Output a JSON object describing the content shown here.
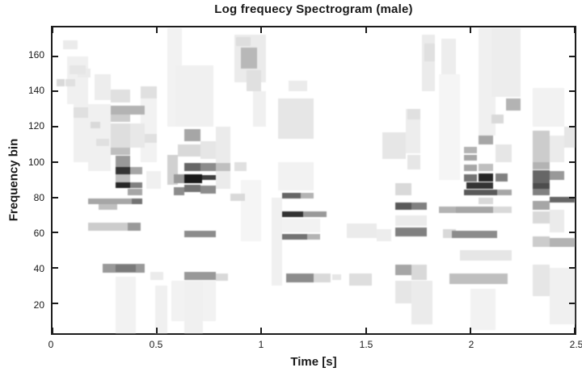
{
  "figure": {
    "title": "Log frequecy Spectrogram (male)",
    "xlabel": "Time [s]",
    "ylabel": "Frequency bin"
  },
  "chart_data": {
    "type": "heatmap",
    "title": "Log frequecy Spectrogram (male)",
    "xlabel": "Time [s]",
    "ylabel": "Frequency bin",
    "x_range": [
      0,
      2.5
    ],
    "y_range": [
      3,
      176
    ],
    "x_ticks": [
      0,
      0.5,
      1,
      1.5,
      2,
      2.5
    ],
    "x_tick_labels": [
      "0",
      "0.5",
      "1",
      "1.5",
      "2",
      "2.5"
    ],
    "y_ticks": [
      20,
      40,
      60,
      80,
      100,
      120,
      140,
      160
    ],
    "y_tick_labels": [
      "20",
      "40",
      "60",
      "80",
      "100",
      "120",
      "140",
      "160"
    ],
    "grid": false,
    "colormap": "inverted-gray white=low black=high",
    "cells_format": [
      "t_start_s",
      "t_end_s",
      "bin_low",
      "bin_high",
      "intensity_0to1"
    ],
    "cells": [
      [
        0.02,
        0.06,
        143,
        147,
        0.15
      ],
      [
        0.06,
        0.11,
        143,
        147,
        0.12
      ],
      [
        0.05,
        0.12,
        164,
        169,
        0.08
      ],
      [
        0.07,
        0.17,
        133,
        160,
        0.06
      ],
      [
        0.08,
        0.16,
        150,
        155,
        0.1
      ],
      [
        0.1,
        0.17,
        100,
        140,
        0.06
      ],
      [
        0.1,
        0.17,
        125,
        131,
        0.12
      ],
      [
        0.12,
        0.18,
        148,
        153,
        0.08
      ],
      [
        0.18,
        0.23,
        119,
        123,
        0.15
      ],
      [
        0.21,
        0.27,
        109,
        113,
        0.12
      ],
      [
        0.2,
        0.28,
        135,
        150,
        0.07
      ],
      [
        0.17,
        0.28,
        95,
        133,
        0.06
      ],
      [
        0.17,
        0.43,
        76,
        79.5,
        0.35
      ],
      [
        0.38,
        0.43,
        76,
        79.5,
        0.55
      ],
      [
        0.22,
        0.31,
        73,
        76,
        0.25
      ],
      [
        0.17,
        0.42,
        61,
        65.5,
        0.2
      ],
      [
        0.36,
        0.42,
        61,
        65.5,
        0.4
      ],
      [
        0.24,
        0.44,
        37.5,
        42.5,
        0.4
      ],
      [
        0.3,
        0.4,
        38,
        42,
        0.52
      ],
      [
        0.3,
        0.4,
        3,
        35,
        0.05
      ],
      [
        0.28,
        0.44,
        127,
        132,
        0.3
      ],
      [
        0.28,
        0.37,
        123,
        127,
        0.2
      ],
      [
        0.28,
        0.37,
        134,
        141,
        0.12
      ],
      [
        0.28,
        0.37,
        108,
        122,
        0.13
      ],
      [
        0.37,
        0.44,
        108,
        122,
        0.09
      ],
      [
        0.28,
        0.37,
        104,
        108,
        0.25
      ],
      [
        0.3,
        0.37,
        97,
        103.5,
        0.4
      ],
      [
        0.3,
        0.37,
        93,
        97,
        0.8
      ],
      [
        0.37,
        0.43,
        93,
        97,
        0.35
      ],
      [
        0.3,
        0.37,
        85.5,
        88.5,
        0.85
      ],
      [
        0.37,
        0.43,
        85.5,
        88.5,
        0.5
      ],
      [
        0.36,
        0.43,
        81,
        85,
        0.35
      ],
      [
        0.3,
        0.37,
        88.5,
        93,
        0.25
      ],
      [
        0.42,
        0.5,
        136,
        143,
        0.12
      ],
      [
        0.42,
        0.5,
        100,
        136,
        0.05
      ],
      [
        0.44,
        0.5,
        111,
        116,
        0.12
      ],
      [
        0.45,
        0.52,
        85,
        95,
        0.06
      ],
      [
        0.49,
        0.55,
        3,
        30,
        0.06
      ],
      [
        0.47,
        0.53,
        33,
        38,
        0.08
      ],
      [
        0.55,
        0.6,
        87,
        104,
        0.18
      ],
      [
        0.55,
        0.62,
        120,
        176,
        0.05
      ],
      [
        0.57,
        0.63,
        10,
        33,
        0.05
      ],
      [
        0.58,
        0.63,
        88,
        93,
        0.4
      ],
      [
        0.58,
        0.63,
        81,
        86,
        0.45
      ],
      [
        0.6,
        0.71,
        103,
        110,
        0.15
      ],
      [
        0.63,
        0.71,
        112,
        118.5,
        0.35
      ],
      [
        0.59,
        0.77,
        120,
        155,
        0.06
      ],
      [
        0.63,
        0.71,
        95,
        99.5,
        0.6
      ],
      [
        0.63,
        0.715,
        88,
        93,
        0.9
      ],
      [
        0.63,
        0.71,
        83,
        87,
        0.55
      ],
      [
        0.715,
        0.78,
        90,
        92.5,
        0.75
      ],
      [
        0.71,
        0.78,
        95,
        99.5,
        0.45
      ],
      [
        0.71,
        0.78,
        82,
        86.5,
        0.45
      ],
      [
        0.63,
        0.78,
        57.5,
        61,
        0.45
      ],
      [
        0.63,
        0.78,
        33,
        38,
        0.4
      ],
      [
        0.78,
        0.84,
        33,
        37,
        0.15
      ],
      [
        0.63,
        0.72,
        3,
        33,
        0.06
      ],
      [
        0.72,
        0.78,
        10,
        33,
        0.05
      ],
      [
        0.78,
        0.85,
        85,
        120,
        0.08
      ],
      [
        0.78,
        0.85,
        95,
        99.5,
        0.25
      ],
      [
        0.71,
        0.78,
        102,
        112,
        0.1
      ],
      [
        0.87,
        1.02,
        145,
        172,
        0.08
      ],
      [
        0.9,
        0.98,
        153,
        165,
        0.28
      ],
      [
        0.88,
        0.95,
        166,
        171,
        0.13
      ],
      [
        0.93,
        1.0,
        140,
        152,
        0.12
      ],
      [
        0.87,
        0.93,
        95,
        100,
        0.12
      ],
      [
        0.85,
        0.92,
        78,
        82,
        0.15
      ],
      [
        0.9,
        1.0,
        55,
        90,
        0.04
      ],
      [
        0.96,
        1.02,
        120,
        140,
        0.06
      ],
      [
        1.05,
        1.1,
        30,
        80,
        0.06
      ],
      [
        1.08,
        1.25,
        113,
        136,
        0.1
      ],
      [
        1.13,
        1.22,
        140,
        146,
        0.08
      ],
      [
        1.08,
        1.28,
        60,
        68,
        0.05
      ],
      [
        1.08,
        1.25,
        84,
        100,
        0.05
      ],
      [
        1.1,
        1.19,
        79.5,
        82.5,
        0.6
      ],
      [
        1.19,
        1.25,
        79.5,
        82.5,
        0.3
      ],
      [
        1.1,
        1.2,
        69,
        72,
        0.8
      ],
      [
        1.2,
        1.31,
        69,
        72,
        0.4
      ],
      [
        1.1,
        1.22,
        56,
        59.5,
        0.55
      ],
      [
        1.22,
        1.28,
        56,
        59.5,
        0.3
      ],
      [
        1.12,
        1.25,
        32,
        37,
        0.45
      ],
      [
        1.25,
        1.33,
        32,
        37,
        0.15
      ],
      [
        1.34,
        1.38,
        33,
        36.5,
        0.1
      ],
      [
        1.41,
        1.55,
        57,
        65,
        0.08
      ],
      [
        1.42,
        1.53,
        30,
        37,
        0.13
      ],
      [
        1.58,
        1.69,
        102,
        117,
        0.1
      ],
      [
        1.55,
        1.62,
        55,
        62,
        0.07
      ],
      [
        1.64,
        1.72,
        73,
        77,
        0.65
      ],
      [
        1.72,
        1.79,
        73,
        77,
        0.5
      ],
      [
        1.64,
        1.79,
        58,
        63,
        0.5
      ],
      [
        1.64,
        1.72,
        81,
        88,
        0.15
      ],
      [
        1.64,
        1.79,
        64,
        70,
        0.08
      ],
      [
        1.64,
        1.72,
        36,
        42,
        0.35
      ],
      [
        1.72,
        1.79,
        33,
        42,
        0.15
      ],
      [
        1.72,
        1.82,
        8,
        33,
        0.08
      ],
      [
        1.64,
        1.72,
        20,
        33,
        0.1
      ],
      [
        1.7,
        1.76,
        96,
        104,
        0.1
      ],
      [
        1.7,
        1.76,
        124,
        130,
        0.12
      ],
      [
        1.77,
        1.83,
        140,
        172,
        0.08
      ],
      [
        1.78,
        1.83,
        157,
        167,
        0.12
      ],
      [
        1.69,
        1.76,
        105,
        130,
        0.07
      ],
      [
        1.86,
        1.93,
        150,
        170,
        0.07
      ],
      [
        1.85,
        1.93,
        71,
        75,
        0.3
      ],
      [
        1.87,
        1.93,
        57,
        62,
        0.15
      ],
      [
        1.85,
        1.95,
        90,
        150,
        0.04
      ],
      [
        1.97,
        2.03,
        105,
        108.5,
        0.3
      ],
      [
        1.97,
        2.03,
        101,
        104,
        0.35
      ],
      [
        1.97,
        2.03,
        95,
        98.5,
        0.35
      ],
      [
        1.97,
        2.03,
        89,
        93,
        0.55
      ],
      [
        1.98,
        2.11,
        85,
        88.5,
        0.8
      ],
      [
        1.97,
        2.13,
        81,
        84.5,
        0.65
      ],
      [
        2.13,
        2.2,
        81,
        84.5,
        0.35
      ],
      [
        2.04,
        2.11,
        89,
        93.5,
        0.85
      ],
      [
        2.12,
        2.18,
        89,
        93.5,
        0.5
      ],
      [
        2.04,
        2.11,
        110,
        115,
        0.35
      ],
      [
        2.04,
        2.12,
        115,
        176,
        0.06
      ],
      [
        2.04,
        2.11,
        95,
        99,
        0.25
      ],
      [
        2.04,
        2.11,
        76,
        80,
        0.15
      ],
      [
        1.93,
        2.11,
        71,
        75,
        0.35
      ],
      [
        2.11,
        2.2,
        71,
        75,
        0.15
      ],
      [
        1.91,
        2.13,
        57,
        61,
        0.45
      ],
      [
        1.9,
        2.18,
        31,
        37,
        0.25
      ],
      [
        1.95,
        2.2,
        44,
        50,
        0.1
      ],
      [
        2.0,
        2.12,
        5,
        28,
        0.05
      ],
      [
        2.1,
        2.16,
        122,
        127,
        0.15
      ],
      [
        2.17,
        2.24,
        129,
        136,
        0.3
      ],
      [
        2.1,
        2.24,
        137,
        176,
        0.07
      ],
      [
        2.12,
        2.2,
        100,
        110,
        0.1
      ],
      [
        2.3,
        2.38,
        100,
        118,
        0.2
      ],
      [
        2.3,
        2.38,
        96,
        100,
        0.3
      ],
      [
        2.3,
        2.38,
        88,
        95.5,
        0.6
      ],
      [
        2.3,
        2.38,
        85,
        88,
        0.7
      ],
      [
        2.3,
        2.38,
        81,
        85,
        0.5
      ],
      [
        2.3,
        2.38,
        73,
        78,
        0.35
      ],
      [
        2.3,
        2.38,
        65,
        72,
        0.15
      ],
      [
        2.3,
        2.38,
        52,
        58,
        0.2
      ],
      [
        2.38,
        2.45,
        90,
        95,
        0.4
      ],
      [
        2.38,
        2.5,
        77,
        80.5,
        0.6
      ],
      [
        2.38,
        2.5,
        52,
        57,
        0.3
      ],
      [
        2.45,
        2.5,
        108,
        120,
        0.1
      ],
      [
        2.38,
        2.45,
        100,
        115,
        0.08
      ],
      [
        2.3,
        2.45,
        120,
        142,
        0.05
      ],
      [
        2.3,
        2.38,
        24,
        42,
        0.1
      ],
      [
        2.38,
        2.5,
        8,
        40,
        0.06
      ],
      [
        2.38,
        2.45,
        60,
        73,
        0.08
      ]
    ]
  }
}
